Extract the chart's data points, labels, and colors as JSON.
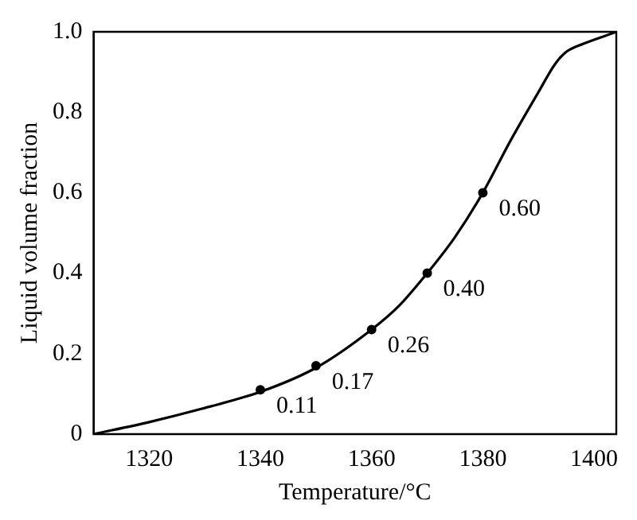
{
  "chart_data": {
    "type": "line",
    "xlabel": "Temperature/°C",
    "ylabel": "Liquid volume fraction",
    "xlim": [
      1310,
      1404
    ],
    "xticks": [
      1320,
      1340,
      1360,
      1380,
      1400
    ],
    "ylim": [
      0,
      1
    ],
    "yticks": [
      0,
      0.2,
      0.4,
      0.6,
      0.8,
      {
        "value": 1,
        "label": "1.0"
      }
    ],
    "grid": false,
    "legend": false,
    "marker": "none",
    "line_style": "solid",
    "series": [
      {
        "type": "line",
        "color": "#000000",
        "x": [
          1310,
          1320,
          1330,
          1340,
          1350,
          1360,
          1365,
          1370,
          1375,
          1380,
          1385,
          1390,
          1393,
          1395,
          1398,
          1400,
          1404
        ],
        "values": [
          0,
          0.03,
          0.065,
          0.105,
          0.165,
          0.26,
          0.32,
          0.4,
          0.49,
          0.6,
          0.73,
          0.85,
          0.92,
          0.95,
          0.97,
          0.98,
          1.0
        ]
      },
      {
        "type": "scatter",
        "color": "#000000",
        "marker": "circle",
        "x": [
          1340,
          1350,
          1360,
          1370,
          1380
        ],
        "values": [
          0.11,
          0.17,
          0.26,
          0.4,
          0.6
        ],
        "value_labels": [
          "0.11",
          "0.17",
          "0.26",
          "0.40",
          "0.60"
        ]
      }
    ]
  }
}
